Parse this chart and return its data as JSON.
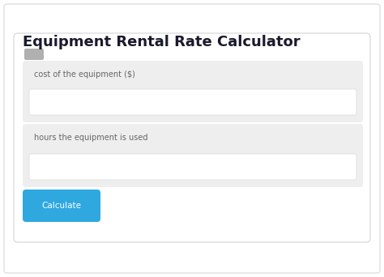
{
  "title": "Equipment Rental Rate Calculator",
  "title_fontsize": 13,
  "title_color": "#1a1a2e",
  "title_fontweight": "bold",
  "label1": "cost of the equipment ($)",
  "label2": "hours the equipment is used",
  "button_text": "Calculate",
  "bg_color": "#f7f7f7",
  "outer_bg": "#ffffff",
  "card_color": "#ffffff",
  "card_border_color": "#d4d4d4",
  "field_bg_color": "#eeeeee",
  "input_bg_color": "#ffffff",
  "input_border_color": "#cccccc",
  "button_color": "#2fa8e0",
  "button_text_color": "#ffffff",
  "label_color": "#666666",
  "label_fontsize": 7.0,
  "button_fontsize": 7.5,
  "toggle_color": "#b0b0b0"
}
